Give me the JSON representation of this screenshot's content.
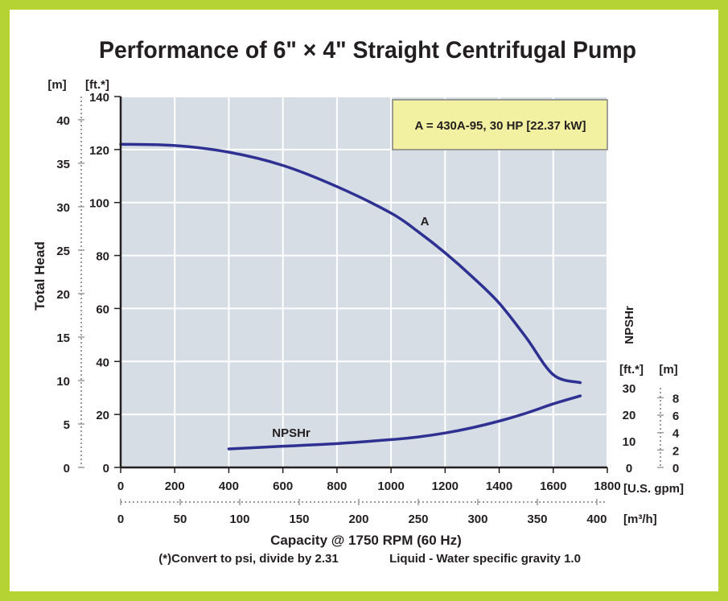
{
  "chart_data": {
    "type": "line",
    "title": "Performance of 6\" × 4\" Straight Centrifugal Pump",
    "xlabel": "Capacity @ 1750 RPM (60 Hz)",
    "ylabel": "Total Head",
    "secondary_ylabel": "NPSHr",
    "x_unit": "[U.S. gpm]",
    "x2_unit": "[m³/h]",
    "y_unit_ft": "[ft.*]",
    "y_unit_m": "[m]",
    "npsh_unit_ft": "[ft.*]",
    "npsh_unit_m": "[m]",
    "xlim": [
      0,
      1800
    ],
    "ylim": [
      0,
      140
    ],
    "x_ticks": [
      "0",
      "200",
      "400",
      "600",
      "800",
      "1000",
      "1200",
      "1400",
      "1600",
      "1800"
    ],
    "x_values": [
      0,
      200,
      400,
      600,
      800,
      1000,
      1200,
      1400,
      1600,
      1800
    ],
    "x2_ticks": [
      "0",
      "50",
      "100",
      "150",
      "200",
      "250",
      "300",
      "350",
      "400"
    ],
    "x2_values": [
      0,
      50,
      100,
      150,
      200,
      250,
      300,
      350,
      400
    ],
    "y_ft_ticks": [
      "0",
      "20",
      "40",
      "60",
      "80",
      "100",
      "120",
      "140"
    ],
    "y_ft_values": [
      0,
      20,
      40,
      60,
      80,
      100,
      120,
      140
    ],
    "y_m_ticks": [
      "0",
      "5",
      "10",
      "15",
      "20",
      "25",
      "30",
      "35",
      "40"
    ],
    "y_m_values": [
      0,
      5,
      10,
      15,
      20,
      25,
      30,
      35,
      40
    ],
    "npsh_ft_ticks": [
      "0",
      "10",
      "20",
      "30"
    ],
    "npsh_ft_values": [
      0,
      10,
      20,
      30
    ],
    "npsh_m_ticks": [
      "0",
      "2",
      "4",
      "6",
      "8"
    ],
    "npsh_m_values": [
      0,
      2,
      4,
      6,
      8
    ],
    "grid": true,
    "series": [
      {
        "name": "A",
        "color": "#2e3192",
        "points": [
          [
            0,
            122
          ],
          [
            200,
            121.5
          ],
          [
            400,
            119
          ],
          [
            600,
            114
          ],
          [
            800,
            106
          ],
          [
            1000,
            96
          ],
          [
            1100,
            89
          ],
          [
            1200,
            81
          ],
          [
            1300,
            72
          ],
          [
            1400,
            62
          ],
          [
            1500,
            49
          ],
          [
            1600,
            35
          ],
          [
            1700,
            32
          ]
        ]
      },
      {
        "name": "NPSHr",
        "color": "#2e3192",
        "points": [
          [
            400,
            7
          ],
          [
            600,
            8
          ],
          [
            800,
            9
          ],
          [
            1000,
            10.5
          ],
          [
            1100,
            11.5
          ],
          [
            1200,
            13
          ],
          [
            1300,
            15
          ],
          [
            1400,
            17.5
          ],
          [
            1500,
            20.5
          ],
          [
            1600,
            24
          ],
          [
            1700,
            27
          ]
        ]
      }
    ],
    "legend_box": {
      "text": "A = 430A-95, 30 HP [22.37 kW]",
      "background": "#f2f0a1",
      "border": "#808080",
      "placement": "top-right"
    },
    "footnote_convert": "(*)Convert to psi, divide by 2.31",
    "footnote_liquid": "Liquid - Water specific gravity 1.0"
  }
}
